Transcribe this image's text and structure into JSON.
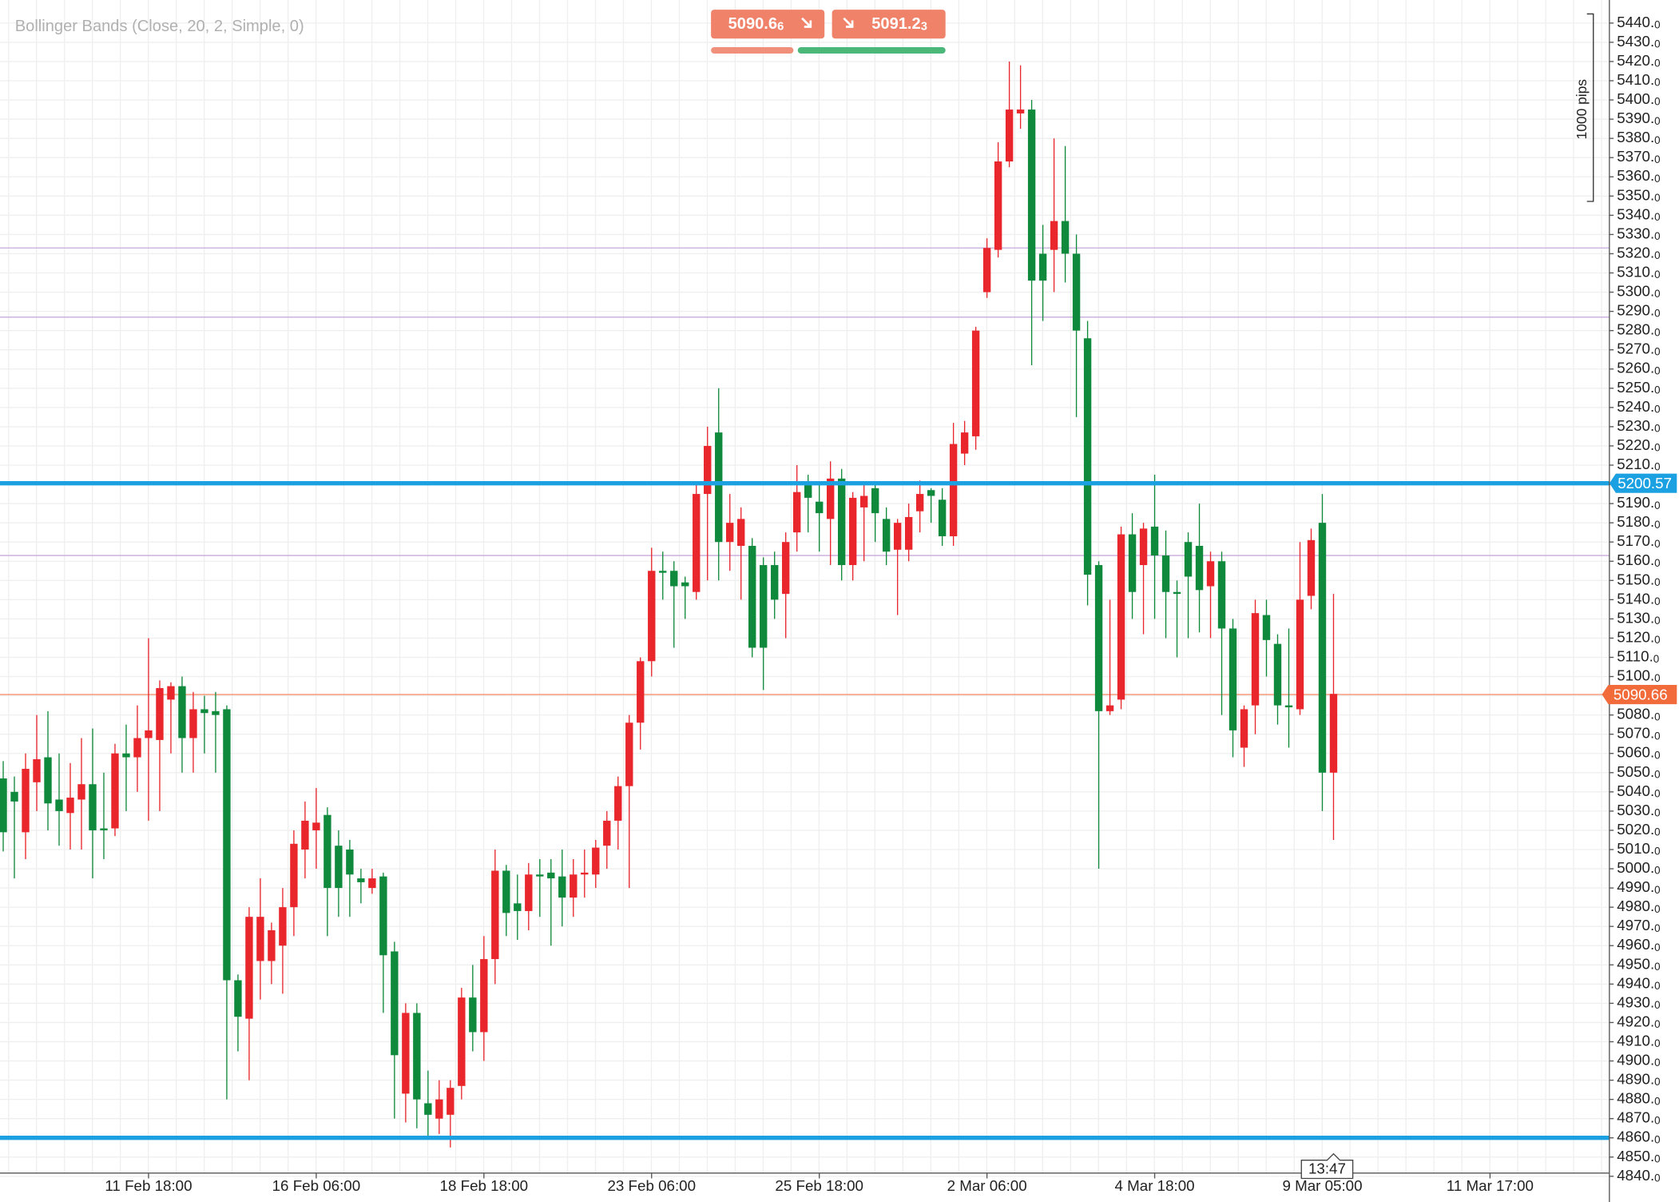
{
  "indicator": "Bollinger Bands (Close, 20, 2, Simple, 0)",
  "quote": {
    "sell": "5090.66",
    "buy": "5091.23"
  },
  "pip_scale": "1000 pips",
  "time_label": "13:47",
  "chart_data": {
    "type": "candlestick",
    "up_color": "#e8262b",
    "down_color": "#0f8a3c",
    "ylim": [
      4840,
      5452
    ],
    "yticks": [
      {
        "value": 5440,
        "label": "5440.0"
      },
      {
        "value": 5430,
        "label": "5430.0"
      },
      {
        "value": 5420,
        "label": "5420.0"
      },
      {
        "value": 5410,
        "label": "5410.0"
      },
      {
        "value": 5400,
        "label": "5400.0"
      },
      {
        "value": 5390,
        "label": "5390.0"
      },
      {
        "value": 5380,
        "label": "5380.0"
      },
      {
        "value": 5370,
        "label": "5370.0"
      },
      {
        "value": 5360,
        "label": "5360.0"
      },
      {
        "value": 5350,
        "label": "5350.0"
      },
      {
        "value": 5340,
        "label": "5340.0"
      },
      {
        "value": 5330,
        "label": "5330.0"
      },
      {
        "value": 5320,
        "label": "5320.0"
      },
      {
        "value": 5310,
        "label": "5310.0"
      },
      {
        "value": 5300,
        "label": "5300.0"
      },
      {
        "value": 5290,
        "label": "5290.0"
      },
      {
        "value": 5280,
        "label": "5280.0"
      },
      {
        "value": 5270,
        "label": "5270.0"
      },
      {
        "value": 5260,
        "label": "5260.0"
      },
      {
        "value": 5250,
        "label": "5250.0"
      },
      {
        "value": 5240,
        "label": "5240.0"
      },
      {
        "value": 5230,
        "label": "5230.0"
      },
      {
        "value": 5220,
        "label": "5220.0"
      },
      {
        "value": 5210,
        "label": "5210.0"
      },
      {
        "value": 5200,
        "label": "5200.0"
      },
      {
        "value": 5190,
        "label": "5190.0"
      },
      {
        "value": 5180,
        "label": "5180.0"
      },
      {
        "value": 5170,
        "label": "5170.0"
      },
      {
        "value": 5160,
        "label": "5160.0"
      },
      {
        "value": 5150,
        "label": "5150.0"
      },
      {
        "value": 5140,
        "label": "5140.0"
      },
      {
        "value": 5130,
        "label": "5130.0"
      },
      {
        "value": 5120,
        "label": "5120.0"
      },
      {
        "value": 5110,
        "label": "5110.0"
      },
      {
        "value": 5100,
        "label": "5100.0"
      },
      {
        "value": 5090,
        "label": "5090.0"
      },
      {
        "value": 5080,
        "label": "5080.0"
      },
      {
        "value": 5070,
        "label": "5070.0"
      },
      {
        "value": 5060,
        "label": "5060.0"
      },
      {
        "value": 5050,
        "label": "5050.0"
      },
      {
        "value": 5040,
        "label": "5040.0"
      },
      {
        "value": 5030,
        "label": "5030.0"
      },
      {
        "value": 5020,
        "label": "5020.0"
      },
      {
        "value": 5010,
        "label": "5010.0"
      },
      {
        "value": 5000,
        "label": "5000.0"
      },
      {
        "value": 4990,
        "label": "4990.0"
      },
      {
        "value": 4980,
        "label": "4980.0"
      },
      {
        "value": 4970,
        "label": "4970.0"
      },
      {
        "value": 4960,
        "label": "4960.0"
      },
      {
        "value": 4950,
        "label": "4950.0"
      },
      {
        "value": 4940,
        "label": "4940.0"
      },
      {
        "value": 4930,
        "label": "4930.0"
      },
      {
        "value": 4920,
        "label": "4920.0"
      },
      {
        "value": 4910,
        "label": "4910.0"
      },
      {
        "value": 4900,
        "label": "4900.0"
      },
      {
        "value": 4890,
        "label": "4890.0"
      },
      {
        "value": 4880,
        "label": "4880.0"
      },
      {
        "value": 4870,
        "label": "4870.0"
      },
      {
        "value": 4860,
        "label": "4860.0"
      },
      {
        "value": 4850,
        "label": "4850.0"
      },
      {
        "value": 4840,
        "label": "4840.0"
      }
    ],
    "x_labels": [
      "11 Feb 18:00",
      "16 Feb 06:00",
      "18 Feb 18:00",
      "23 Feb 06:00",
      "25 Feb 18:00",
      "2 Mar 06:00",
      "4 Mar 18:00",
      "9 Mar 05:00",
      "11 Mar 17:00"
    ],
    "levels": [
      {
        "value": 5200.57,
        "label": "5200.57",
        "color": "#1ba1e2"
      },
      {
        "value": 4860,
        "color": "#1ba1e2"
      }
    ],
    "guides": {
      "values": [
        5323,
        5287,
        5163
      ],
      "color": "#c9a9dc"
    },
    "price": {
      "value": 5090.66,
      "label": "5090.66",
      "color": "#f26b3a"
    },
    "candles": [
      {
        "open": 5047,
        "high": 5056,
        "low": 5009,
        "close": 5019
      },
      {
        "open": 5040,
        "high": 5048,
        "low": 4995,
        "close": 5035
      },
      {
        "open": 5019,
        "high": 5060,
        "low": 5005,
        "close": 5052
      },
      {
        "open": 5045,
        "high": 5080,
        "low": 5030,
        "close": 5057
      },
      {
        "open": 5058,
        "high": 5082,
        "low": 5020,
        "close": 5034
      },
      {
        "open": 5036,
        "high": 5060,
        "low": 5012,
        "close": 5030
      },
      {
        "open": 5029,
        "high": 5055,
        "low": 5010,
        "close": 5037
      },
      {
        "open": 5036,
        "high": 5068,
        "low": 5010,
        "close": 5044
      },
      {
        "open": 5044,
        "high": 5073,
        "low": 4995,
        "close": 5020
      },
      {
        "open": 5021,
        "high": 5050,
        "low": 5005,
        "close": 5020
      },
      {
        "open": 5021,
        "high": 5065,
        "low": 5017,
        "close": 5060
      },
      {
        "open": 5060,
        "high": 5075,
        "low": 5030,
        "close": 5058
      },
      {
        "open": 5058,
        "high": 5085,
        "low": 5040,
        "close": 5068
      },
      {
        "open": 5068,
        "high": 5120,
        "low": 5025,
        "close": 5072
      },
      {
        "open": 5067,
        "high": 5098,
        "low": 5030,
        "close": 5094
      },
      {
        "open": 5088,
        "high": 5097,
        "low": 5060,
        "close": 5095
      },
      {
        "open": 5095,
        "high": 5100,
        "low": 5050,
        "close": 5068
      },
      {
        "open": 5068,
        "high": 5092,
        "low": 5050,
        "close": 5083
      },
      {
        "open": 5083,
        "high": 5090,
        "low": 5060,
        "close": 5081
      },
      {
        "open": 5082,
        "high": 5092,
        "low": 5050,
        "close": 5080
      },
      {
        "open": 5083,
        "high": 5085,
        "low": 4880,
        "close": 4942
      },
      {
        "open": 4942,
        "high": 4945,
        "low": 4905,
        "close": 4923
      },
      {
        "open": 4922,
        "high": 4980,
        "low": 4890,
        "close": 4975
      },
      {
        "open": 4952,
        "high": 4995,
        "low": 4932,
        "close": 4975
      },
      {
        "open": 4952,
        "high": 4972,
        "low": 4940,
        "close": 4968
      },
      {
        "open": 4960,
        "high": 4990,
        "low": 4935,
        "close": 4980
      },
      {
        "open": 4980,
        "high": 5020,
        "low": 4965,
        "close": 5013
      },
      {
        "open": 5010,
        "high": 5035,
        "low": 4995,
        "close": 5025
      },
      {
        "open": 5020,
        "high": 5042,
        "low": 5000,
        "close": 5024
      },
      {
        "open": 5028,
        "high": 5032,
        "low": 4965,
        "close": 4990
      },
      {
        "open": 5012,
        "high": 5020,
        "low": 4975,
        "close": 4990
      },
      {
        "open": 5010,
        "high": 5015,
        "low": 4975,
        "close": 4997
      },
      {
        "open": 4995,
        "high": 5000,
        "low": 4982,
        "close": 4993
      },
      {
        "open": 4990,
        "high": 5000,
        "low": 4987,
        "close": 4995
      },
      {
        "open": 4996,
        "high": 4998,
        "low": 4925,
        "close": 4955
      },
      {
        "open": 4957,
        "high": 4962,
        "low": 4870,
        "close": 4903
      },
      {
        "open": 4883,
        "high": 4930,
        "low": 4868,
        "close": 4925
      },
      {
        "open": 4925,
        "high": 4930,
        "low": 4865,
        "close": 4880
      },
      {
        "open": 4878,
        "high": 4895,
        "low": 4860,
        "close": 4872
      },
      {
        "open": 4870,
        "high": 4890,
        "low": 4862,
        "close": 4880
      },
      {
        "open": 4872,
        "high": 4890,
        "low": 4855,
        "close": 4886
      },
      {
        "open": 4887,
        "high": 4938,
        "low": 4880,
        "close": 4933
      },
      {
        "open": 4933,
        "high": 4950,
        "low": 4905,
        "close": 4915
      },
      {
        "open": 4915,
        "high": 4965,
        "low": 4900,
        "close": 4953
      },
      {
        "open": 4953,
        "high": 5010,
        "low": 4940,
        "close": 4999
      },
      {
        "open": 4999,
        "high": 5002,
        "low": 4965,
        "close": 4977
      },
      {
        "open": 4982,
        "high": 4997,
        "low": 4963,
        "close": 4978
      },
      {
        "open": 4978,
        "high": 5003,
        "low": 4968,
        "close": 4997
      },
      {
        "open": 4997,
        "high": 5005,
        "low": 4975,
        "close": 4996
      },
      {
        "open": 4998,
        "high": 5005,
        "low": 4960,
        "close": 4995
      },
      {
        "open": 4996,
        "high": 5010,
        "low": 4970,
        "close": 4985
      },
      {
        "open": 4985,
        "high": 5005,
        "low": 4975,
        "close": 4997
      },
      {
        "open": 4997,
        "high": 5010,
        "low": 4985,
        "close": 4998
      },
      {
        "open": 4997,
        "high": 5015,
        "low": 4990,
        "close": 5011
      },
      {
        "open": 5012,
        "high": 5030,
        "low": 5000,
        "close": 5025
      },
      {
        "open": 5025,
        "high": 5048,
        "low": 5010,
        "close": 5043
      },
      {
        "open": 5043,
        "high": 5080,
        "low": 4990,
        "close": 5076
      },
      {
        "open": 5076,
        "high": 5110,
        "low": 5062,
        "close": 5108
      },
      {
        "open": 5108,
        "high": 5167,
        "low": 5100,
        "close": 5155
      },
      {
        "open": 5155,
        "high": 5165,
        "low": 5140,
        "close": 5154
      },
      {
        "open": 5155,
        "high": 5160,
        "low": 5115,
        "close": 5147
      },
      {
        "open": 5149,
        "high": 5152,
        "low": 5130,
        "close": 5147
      },
      {
        "open": 5144,
        "high": 5200,
        "low": 5140,
        "close": 5195
      },
      {
        "open": 5195,
        "high": 5230,
        "low": 5150,
        "close": 5220
      },
      {
        "open": 5227,
        "high": 5250,
        "low": 5150,
        "close": 5170
      },
      {
        "open": 5170,
        "high": 5195,
        "low": 5155,
        "close": 5180
      },
      {
        "open": 5168,
        "high": 5188,
        "low": 5140,
        "close": 5182
      },
      {
        "open": 5168,
        "high": 5172,
        "low": 5110,
        "close": 5115
      },
      {
        "open": 5158,
        "high": 5162,
        "low": 5093,
        "close": 5115
      },
      {
        "open": 5158,
        "high": 5165,
        "low": 5130,
        "close": 5140
      },
      {
        "open": 5143,
        "high": 5175,
        "low": 5120,
        "close": 5170
      },
      {
        "open": 5175,
        "high": 5210,
        "low": 5165,
        "close": 5196
      },
      {
        "open": 5200,
        "high": 5205,
        "low": 5175,
        "close": 5193
      },
      {
        "open": 5191,
        "high": 5200,
        "low": 5165,
        "close": 5185
      },
      {
        "open": 5182,
        "high": 5212,
        "low": 5158,
        "close": 5203
      },
      {
        "open": 5203,
        "high": 5208,
        "low": 5150,
        "close": 5158
      },
      {
        "open": 5158,
        "high": 5196,
        "low": 5150,
        "close": 5193
      },
      {
        "open": 5188,
        "high": 5200,
        "low": 5160,
        "close": 5194
      },
      {
        "open": 5198,
        "high": 5200,
        "low": 5170,
        "close": 5185
      },
      {
        "open": 5182,
        "high": 5188,
        "low": 5158,
        "close": 5165
      },
      {
        "open": 5166,
        "high": 5182,
        "low": 5132,
        "close": 5180
      },
      {
        "open": 5166,
        "high": 5190,
        "low": 5160,
        "close": 5183
      },
      {
        "open": 5186,
        "high": 5202,
        "low": 5175,
        "close": 5195
      },
      {
        "open": 5197,
        "high": 5198,
        "low": 5180,
        "close": 5194
      },
      {
        "open": 5192,
        "high": 5198,
        "low": 5168,
        "close": 5173
      },
      {
        "open": 5173,
        "high": 5232,
        "low": 5168,
        "close": 5221
      },
      {
        "open": 5216,
        "high": 5233,
        "low": 5210,
        "close": 5227
      },
      {
        "open": 5225,
        "high": 5282,
        "low": 5218,
        "close": 5280
      },
      {
        "open": 5300,
        "high": 5328,
        "low": 5297,
        "close": 5323
      },
      {
        "open": 5322,
        "high": 5378,
        "low": 5318,
        "close": 5368
      },
      {
        "open": 5368,
        "high": 5420,
        "low": 5365,
        "close": 5395
      },
      {
        "open": 5393,
        "high": 5418,
        "low": 5385,
        "close": 5395
      },
      {
        "open": 5395,
        "high": 5400,
        "low": 5262,
        "close": 5306
      },
      {
        "open": 5320,
        "high": 5335,
        "low": 5285,
        "close": 5306
      },
      {
        "open": 5322,
        "high": 5380,
        "low": 5300,
        "close": 5337
      },
      {
        "open": 5337,
        "high": 5376,
        "low": 5305,
        "close": 5320
      },
      {
        "open": 5320,
        "high": 5330,
        "low": 5235,
        "close": 5280
      },
      {
        "open": 5276,
        "high": 5285,
        "low": 5137,
        "close": 5153
      },
      {
        "open": 5158,
        "high": 5160,
        "low": 5000,
        "close": 5082
      },
      {
        "open": 5082,
        "high": 5140,
        "low": 5080,
        "close": 5085
      },
      {
        "open": 5088,
        "high": 5178,
        "low": 5083,
        "close": 5174
      },
      {
        "open": 5174,
        "high": 5185,
        "low": 5130,
        "close": 5144
      },
      {
        "open": 5158,
        "high": 5180,
        "low": 5122,
        "close": 5177
      },
      {
        "open": 5178,
        "high": 5205,
        "low": 5130,
        "close": 5163
      },
      {
        "open": 5163,
        "high": 5176,
        "low": 5120,
        "close": 5144
      },
      {
        "open": 5144,
        "high": 5150,
        "low": 5110,
        "close": 5143
      },
      {
        "open": 5170,
        "high": 5175,
        "low": 5120,
        "close": 5152
      },
      {
        "open": 5168,
        "high": 5190,
        "low": 5123,
        "close": 5145
      },
      {
        "open": 5147,
        "high": 5165,
        "low": 5120,
        "close": 5160
      },
      {
        "open": 5160,
        "high": 5165,
        "low": 5080,
        "close": 5125
      },
      {
        "open": 5125,
        "high": 5130,
        "low": 5058,
        "close": 5072
      },
      {
        "open": 5063,
        "high": 5085,
        "low": 5053,
        "close": 5083
      },
      {
        "open": 5085,
        "high": 5140,
        "low": 5070,
        "close": 5133
      },
      {
        "open": 5132,
        "high": 5140,
        "low": 5100,
        "close": 5119
      },
      {
        "open": 5117,
        "high": 5122,
        "low": 5075,
        "close": 5085
      },
      {
        "open": 5085,
        "high": 5125,
        "low": 5063,
        "close": 5084
      },
      {
        "open": 5083,
        "high": 5170,
        "low": 5080,
        "close": 5140
      },
      {
        "open": 5142,
        "high": 5177,
        "low": 5135,
        "close": 5171
      },
      {
        "open": 5180,
        "high": 5195,
        "low": 5030,
        "close": 5050
      },
      {
        "open": 5050,
        "high": 5143,
        "low": 5015,
        "close": 5091
      }
    ]
  }
}
